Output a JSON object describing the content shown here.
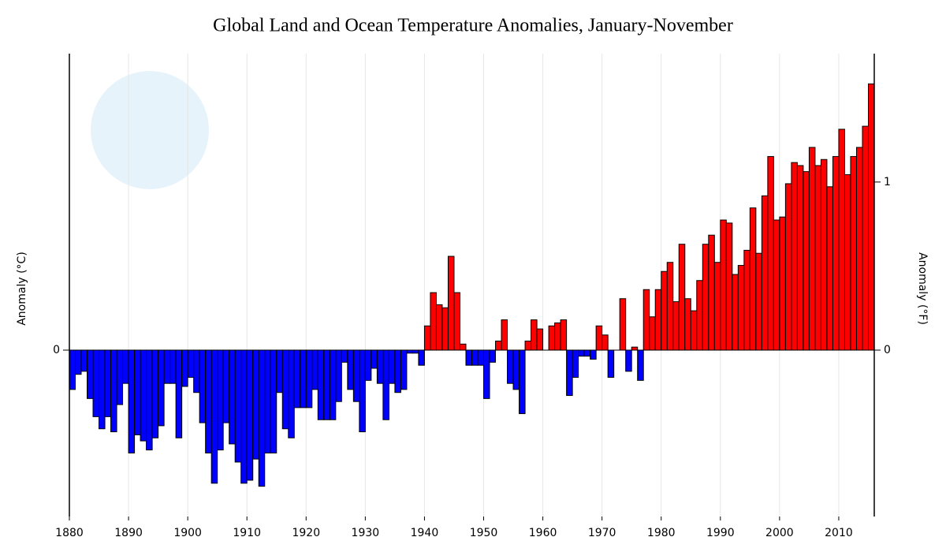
{
  "chart_data": {
    "type": "bar",
    "title": "Global Land and Ocean Temperature Anomalies, January-November",
    "y_label": "Anomaly (°C)",
    "y2_label": "Anomaly (°F)",
    "x": [
      1880,
      1881,
      1882,
      1883,
      1884,
      1885,
      1886,
      1887,
      1888,
      1889,
      1890,
      1891,
      1892,
      1893,
      1894,
      1895,
      1896,
      1897,
      1898,
      1899,
      1900,
      1901,
      1902,
      1903,
      1904,
      1905,
      1906,
      1907,
      1908,
      1909,
      1910,
      1911,
      1912,
      1913,
      1914,
      1915,
      1916,
      1917,
      1918,
      1919,
      1920,
      1921,
      1922,
      1923,
      1924,
      1925,
      1926,
      1927,
      1928,
      1929,
      1930,
      1931,
      1932,
      1933,
      1934,
      1935,
      1936,
      1937,
      1938,
      1939,
      1940,
      1941,
      1942,
      1943,
      1944,
      1945,
      1946,
      1947,
      1948,
      1949,
      1950,
      1951,
      1952,
      1953,
      1954,
      1955,
      1956,
      1957,
      1958,
      1959,
      1960,
      1961,
      1962,
      1963,
      1964,
      1965,
      1966,
      1967,
      1968,
      1969,
      1970,
      1971,
      1972,
      1973,
      1974,
      1975,
      1976,
      1977,
      1978,
      1979,
      1980,
      1981,
      1982,
      1983,
      1984,
      1985,
      1986,
      1987,
      1988,
      1989,
      1990,
      1991,
      1992,
      1993,
      1994,
      1995,
      1996,
      1997,
      1998,
      1999,
      2000,
      2001,
      2002,
      2003,
      2004,
      2005,
      2006,
      2007,
      2008,
      2009,
      2010,
      2011,
      2012,
      2013,
      2014,
      2015
    ],
    "values": [
      -0.13,
      -0.08,
      -0.07,
      -0.16,
      -0.22,
      -0.26,
      -0.22,
      -0.27,
      -0.18,
      -0.11,
      -0.34,
      -0.28,
      -0.3,
      -0.33,
      -0.29,
      -0.25,
      -0.11,
      -0.11,
      -0.29,
      -0.12,
      -0.09,
      -0.14,
      -0.24,
      -0.34,
      -0.44,
      -0.33,
      -0.24,
      -0.31,
      -0.37,
      -0.44,
      -0.43,
      -0.36,
      -0.45,
      -0.34,
      -0.34,
      -0.14,
      -0.26,
      -0.29,
      -0.19,
      -0.19,
      -0.19,
      -0.13,
      -0.23,
      -0.23,
      -0.23,
      -0.17,
      -0.04,
      -0.13,
      -0.17,
      -0.27,
      -0.1,
      -0.06,
      -0.11,
      -0.23,
      -0.11,
      -0.14,
      -0.13,
      -0.01,
      -0.01,
      -0.05,
      0.08,
      0.19,
      0.15,
      0.14,
      0.31,
      0.19,
      0.02,
      -0.05,
      -0.05,
      -0.05,
      -0.16,
      -0.04,
      0.03,
      0.1,
      -0.11,
      -0.13,
      -0.21,
      0.03,
      0.1,
      0.07,
      0.0,
      0.08,
      0.09,
      0.1,
      -0.15,
      -0.09,
      -0.02,
      -0.02,
      -0.03,
      0.08,
      0.05,
      -0.09,
      0.0,
      0.17,
      -0.07,
      0.01,
      -0.1,
      0.2,
      0.11,
      0.2,
      0.26,
      0.29,
      0.16,
      0.35,
      0.17,
      0.13,
      0.23,
      0.35,
      0.38,
      0.29,
      0.43,
      0.42,
      0.25,
      0.28,
      0.33,
      0.47,
      0.32,
      0.51,
      0.64,
      0.43,
      0.44,
      0.55,
      0.62,
      0.61,
      0.59,
      0.67,
      0.61,
      0.63,
      0.54,
      0.64,
      0.73,
      0.58,
      0.64,
      0.67,
      0.74,
      0.88
    ],
    "positive_color": "#ff0000",
    "negative_color": "#0000ff",
    "xlim": [
      1880,
      2016
    ],
    "xticks": [
      1880,
      1890,
      1900,
      1910,
      1920,
      1930,
      1940,
      1950,
      1960,
      1970,
      1980,
      1990,
      2000,
      2010
    ],
    "ylim": [
      -0.55,
      0.98
    ],
    "yticks": [
      0
    ],
    "y2lim": [
      -0.99,
      1.764
    ],
    "y2ticks": [
      0,
      1
    ],
    "grid": true
  }
}
